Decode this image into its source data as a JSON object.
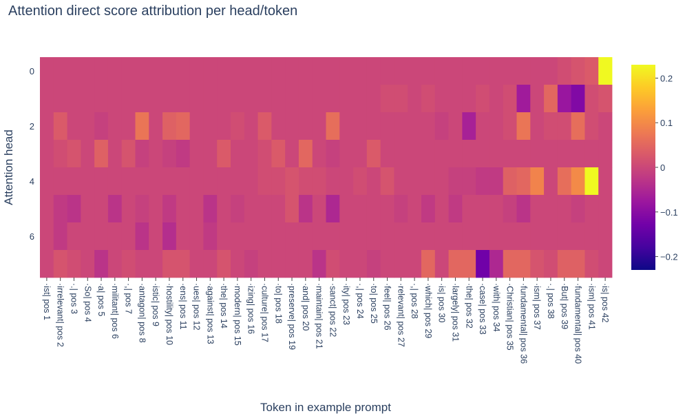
{
  "chart_data": {
    "type": "heatmap",
    "title": "Attention direct score attribution per head/token",
    "xlabel": "Token in example prompt",
    "ylabel": "Attention head",
    "x": [
      "·ist| pos 1",
      "·irrelevant| pos 2",
      "·.| pos 3",
      "·So| pos 4",
      "·a| pos 5",
      "·militant| pos 6",
      "·,| pos 7",
      "·antagon| pos 8",
      "·istic| pos 9",
      "·hostility| pos 10",
      "·ens| pos 11",
      "·ues| pos 12",
      "·against| pos 13",
      "·the| pos 14",
      "·modern| pos 15",
      "·izing| pos 16",
      "·culture| pos 17",
      "·to| pos 18",
      "·preserve| pos 19",
      "·and| pos 20",
      "·maintain| pos 21",
      "·sanct| pos 22",
      "·ity| pos 23",
      "·,| pos 24",
      "·to| pos 25",
      "·feel| pos 26",
      "·relevant| pos 27",
      "·,| pos 28",
      "·which| pos 29",
      "·is| pos 30",
      "·largely| pos 31",
      "·the| pos 32",
      "·case| pos 33",
      "·with| pos 34",
      "·Christian| pos 35",
      "·fundamental| pos 36",
      "·ism| pos 37",
      "·.| pos 38",
      "·But| pos 39",
      "·fundamental| pos 40",
      "·ism| pos 41",
      "·is| pos 42"
    ],
    "y": [
      0,
      1,
      2,
      3,
      4,
      5,
      6,
      7
    ],
    "y_tick_labels": [
      "0",
      "2",
      "4",
      "6"
    ],
    "colorbar_ticks": [
      0.2,
      0.1,
      0,
      -0.1,
      -0.2
    ],
    "colorbar_tick_labels": [
      "0.2",
      "0.1",
      "0",
      "−0.1",
      "−0.2"
    ],
    "zmin": -0.23,
    "zmax": 0.23,
    "colorscale": [
      "#0d0887",
      "#46039f",
      "#7201a8",
      "#9c179e",
      "#bd3786",
      "#d8576b",
      "#ed7953",
      "#fb9f3a",
      "#fdca26",
      "#f0f921"
    ],
    "z": [
      [
        0,
        0,
        0,
        0,
        0,
        0,
        0,
        0,
        0,
        0,
        0,
        0,
        0,
        0,
        0,
        0,
        0,
        0,
        0,
        0,
        0,
        0,
        0,
        0,
        0,
        0,
        0,
        0,
        0,
        0,
        0,
        0,
        0,
        0,
        0,
        0,
        0,
        0,
        0.01,
        0.02,
        0.03,
        0.23
      ],
      [
        0,
        0,
        0,
        0,
        0,
        0,
        0,
        0,
        0,
        0,
        0,
        0,
        0,
        0,
        0,
        0,
        0,
        0,
        0,
        0,
        0,
        0,
        0,
        0,
        0,
        0.01,
        0.01,
        0,
        0.01,
        0,
        0,
        0,
        0.01,
        0,
        0.01,
        -0.07,
        0,
        0.05,
        -0.08,
        -0.11,
        0.01,
        0.02
      ],
      [
        0,
        0.03,
        0,
        0,
        -0.01,
        0,
        0,
        0.07,
        0,
        0.04,
        0.05,
        0,
        0,
        0,
        0.01,
        0,
        0.03,
        0,
        0,
        0,
        0,
        0.06,
        0,
        0,
        0,
        0,
        0,
        0,
        0,
        -0.01,
        0,
        -0.06,
        0,
        0,
        0.01,
        0.07,
        0,
        0.01,
        0.01,
        0.06,
        0.01,
        0
      ],
      [
        0,
        0.01,
        0.02,
        0,
        0.04,
        0,
        0.02,
        -0.01,
        0,
        -0.01,
        -0.02,
        0,
        0,
        0.03,
        0,
        0,
        0.01,
        0.03,
        0,
        0.05,
        0,
        -0.01,
        0,
        0,
        0.03,
        0,
        0,
        0,
        0,
        0,
        0,
        0,
        0,
        0,
        0,
        0,
        0,
        0,
        0,
        0,
        0,
        0
      ],
      [
        0,
        0,
        0,
        0,
        0,
        0,
        0,
        0,
        0,
        0,
        0,
        0,
        0,
        0,
        0,
        0,
        0.01,
        0.01,
        0.02,
        0.01,
        0.01,
        0,
        0,
        0.01,
        0,
        0.02,
        0,
        0,
        0,
        0,
        -0.01,
        -0.01,
        -0.02,
        -0.02,
        0.04,
        0.05,
        0.09,
        0,
        0.06,
        0.1,
        0.23,
        0
      ],
      [
        0,
        -0.02,
        -0.03,
        0,
        0,
        -0.03,
        0,
        -0.01,
        0,
        -0.02,
        0,
        0,
        -0.03,
        0,
        -0.01,
        0,
        0,
        0,
        0.02,
        -0.03,
        0,
        -0.05,
        0,
        0,
        0,
        0,
        -0.01,
        0,
        -0.02,
        0,
        -0.02,
        0,
        0,
        0,
        -0.01,
        -0.03,
        0,
        0,
        0,
        -0.01,
        0,
        0
      ],
      [
        0,
        -0.02,
        0,
        0,
        0,
        0,
        0,
        -0.03,
        0,
        -0.04,
        0,
        0,
        -0.02,
        0,
        0,
        0,
        0,
        0,
        0,
        0,
        0,
        0,
        0,
        0,
        0,
        0,
        0,
        0,
        0,
        0,
        0,
        0,
        0,
        0,
        0,
        0,
        0,
        0,
        0,
        0,
        0,
        0
      ],
      [
        0,
        0.02,
        0.01,
        0,
        -0.03,
        0,
        0.01,
        0,
        0,
        0.02,
        0.02,
        0,
        0,
        0.02,
        0,
        -0.01,
        0,
        0,
        0,
        0,
        -0.03,
        0.01,
        0,
        0,
        -0.01,
        0,
        0,
        0,
        0.05,
        0,
        0.05,
        0.05,
        -0.13,
        -0.05,
        0.05,
        0.05,
        0.02,
        0.01,
        0.04,
        0.04,
        0.01,
        0
      ]
    ]
  }
}
